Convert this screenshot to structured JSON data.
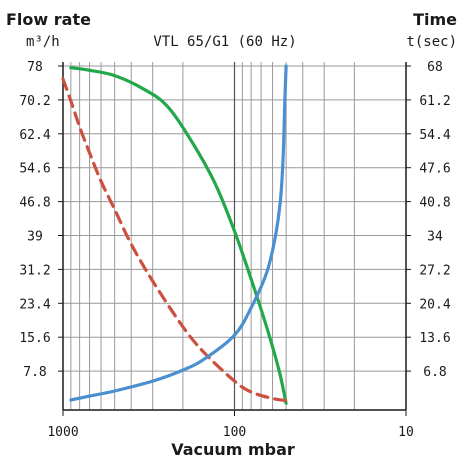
{
  "chart_data": {
    "type": "line",
    "title": "VTL 65/G1 (60 Hz)",
    "left_axis": {
      "label": "Flow rate",
      "unit": "m³/h",
      "range": [
        0,
        78
      ],
      "ticks": [
        "7.8",
        "15.6",
        "23.4",
        "31.2",
        "39",
        "46.8",
        "54.6",
        "62.4",
        "70.2",
        "78"
      ]
    },
    "right_axis": {
      "label": "Time",
      "unit": "t(sec)",
      "range": [
        0,
        68
      ],
      "ticks": [
        "6.8",
        "13.6",
        "20.4",
        "27.2",
        "34",
        "40.8",
        "47.6",
        "54.4",
        "61.2",
        "68"
      ]
    },
    "x_axis": {
      "label": "Vacuum mbar",
      "scale": "log",
      "reversed": true,
      "range": [
        1000,
        10
      ],
      "ticks": [
        "1000",
        "100",
        "10"
      ]
    },
    "grid": true,
    "series": [
      {
        "color": "#22a84a",
        "style": "solid",
        "axis": "left",
        "x": [
          900,
          700,
          500,
          350,
          250,
          180,
          130,
          100,
          80,
          65,
          55,
          50
        ],
        "y": [
          77.6,
          77.0,
          75.8,
          73.0,
          69.0,
          61.0,
          51.0,
          40.0,
          29.0,
          18.0,
          8.0,
          0.4
        ]
      },
      {
        "color": "#cc5040",
        "style": "dashed",
        "axis": "left",
        "x": [
          1000,
          900,
          800,
          700,
          600,
          500,
          400,
          300,
          200,
          150,
          100,
          80,
          60,
          50
        ],
        "y": [
          75.0,
          70.0,
          64.0,
          58.0,
          51.5,
          45.0,
          37.0,
          28.5,
          18.0,
          12.0,
          5.5,
          3.0,
          1.5,
          1.0
        ]
      },
      {
        "color": "#4a8fd0",
        "style": "solid",
        "axis": "right",
        "x": [
          900,
          700,
          500,
          300,
          200,
          150,
          100,
          80,
          65,
          58,
          54,
          52,
          51,
          50
        ],
        "y": [
          1.0,
          1.8,
          2.8,
          4.8,
          7.0,
          9.2,
          14.0,
          19.5,
          26.5,
          33.5,
          41.0,
          50.0,
          60.0,
          68.0
        ]
      }
    ]
  }
}
